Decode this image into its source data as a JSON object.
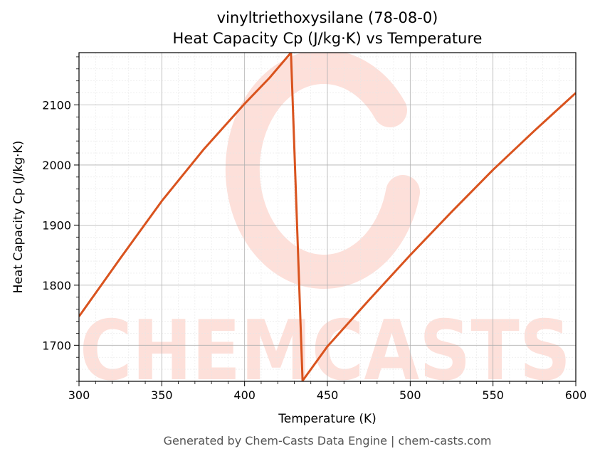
{
  "chart_data": {
    "type": "line",
    "title_line1": "vinyltriethoxysilane (78-08-0)",
    "title_line2": "Heat Capacity Cp (J/kg·K) vs Temperature",
    "xlabel": "Temperature (K)",
    "ylabel": "Heat Capacity Cp (J/kg·K)",
    "xlim": [
      300,
      600
    ],
    "ylim": [
      1640,
      2187
    ],
    "xticks": [
      300,
      350,
      400,
      450,
      500,
      550,
      600
    ],
    "yticks": [
      1700,
      1800,
      1900,
      2000,
      2100
    ],
    "grid": true,
    "series": [
      {
        "color": "#d9531e",
        "points": [
          [
            300,
            1748
          ],
          [
            325,
            1845
          ],
          [
            350,
            1940
          ],
          [
            375,
            2025
          ],
          [
            400,
            2102
          ],
          [
            415,
            2145
          ],
          [
            428,
            2187
          ],
          [
            435,
            1641
          ],
          [
            450,
            1698
          ],
          [
            475,
            1775
          ],
          [
            500,
            1850
          ],
          [
            525,
            1922
          ],
          [
            550,
            1992
          ],
          [
            575,
            2057
          ],
          [
            600,
            2120
          ]
        ]
      }
    ]
  },
  "watermark": {
    "text": "CHEMCASTS",
    "color": "#fde0da"
  },
  "footer": {
    "text": "Generated by Chem-Casts Data Engine | chem-casts.com"
  }
}
